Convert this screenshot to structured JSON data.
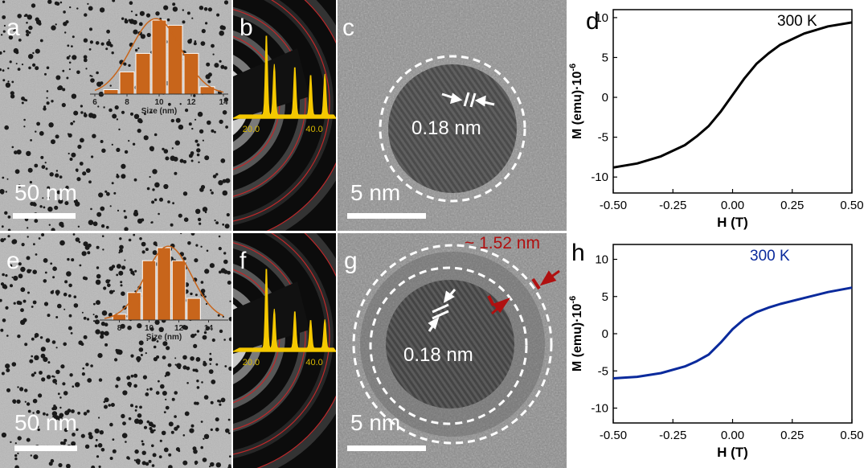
{
  "panels": {
    "a": {
      "letter": "a",
      "scale": "50 nm"
    },
    "b": {
      "letter": "b"
    },
    "c": {
      "letter": "c",
      "scale": "5 nm",
      "lattice": "0.18 nm"
    },
    "d": {
      "letter": "d"
    },
    "e": {
      "letter": "e",
      "scale": "50 nm"
    },
    "f": {
      "letter": "f"
    },
    "g": {
      "letter": "g",
      "scale": "5 nm",
      "lattice": "0.18 nm",
      "shell": "~ 1.52 nm"
    },
    "h": {
      "letter": "h"
    }
  },
  "colors": {
    "hist": "#c8651b",
    "saed_peak": "#f5c800",
    "curve_d": "#000000",
    "curve_h": "#0a2a9c",
    "shell_red": "#b01010"
  },
  "chart_data": [
    {
      "id": "hist-a",
      "type": "bar",
      "categories": [
        "7",
        "8",
        "9",
        "10",
        "11",
        "12",
        "13"
      ],
      "values": [
        0.06,
        0.3,
        0.55,
        1.0,
        0.93,
        0.55,
        0.1
      ],
      "xticks": [
        "6",
        "8",
        "10",
        "12",
        "14"
      ],
      "xlabel": "Size (nm)",
      "xlim": [
        6,
        14
      ]
    },
    {
      "id": "hist-e",
      "type": "bar",
      "categories": [
        "8",
        "9",
        "10",
        "11",
        "12",
        "13"
      ],
      "values": [
        0.08,
        0.38,
        0.82,
        1.0,
        0.82,
        0.3
      ],
      "xticks": [
        "8",
        "10",
        "12",
        "14"
      ],
      "xlabel": "Size (nm)",
      "xlim": [
        7,
        15
      ]
    },
    {
      "id": "saed-b",
      "type": "line",
      "xticks": [
        "20.0",
        "40.0"
      ],
      "peaks": [
        {
          "x": 24.5,
          "h": 1.0
        },
        {
          "x": 27,
          "h": 0.62
        },
        {
          "x": 33.5,
          "h": 0.6
        },
        {
          "x": 38.5,
          "h": 0.5
        },
        {
          "x": 43,
          "h": 0.5
        }
      ]
    },
    {
      "id": "saed-f",
      "type": "line",
      "xticks": [
        "20.0",
        "40.0"
      ],
      "peaks": [
        {
          "x": 24.5,
          "h": 1.0
        },
        {
          "x": 27,
          "h": 0.48
        },
        {
          "x": 33.5,
          "h": 0.46
        },
        {
          "x": 38.5,
          "h": 0.35
        },
        {
          "x": 43,
          "h": 0.35
        }
      ]
    },
    {
      "id": "mh-d",
      "type": "line",
      "annotation": "300 K",
      "xlabel": "H (T)",
      "ylabel": "M (emu)·10",
      "ylabel_exp": "-6",
      "xlim": [
        -0.5,
        0.5
      ],
      "ylim": [
        -12,
        11
      ],
      "xticks": [
        "-0.50",
        "-0.25",
        "0.00",
        "0.25",
        "0.50"
      ],
      "yticks": [
        "-10",
        "-5",
        "0",
        "5",
        "10"
      ],
      "x": [
        -0.5,
        -0.4,
        -0.3,
        -0.2,
        -0.15,
        -0.1,
        -0.05,
        0,
        0.05,
        0.1,
        0.15,
        0.2,
        0.3,
        0.4,
        0.5
      ],
      "y": [
        -8.8,
        -8.3,
        -7.4,
        -6.0,
        -4.9,
        -3.6,
        -1.8,
        0.3,
        2.4,
        4.2,
        5.5,
        6.6,
        8.0,
        8.9,
        9.4
      ]
    },
    {
      "id": "mh-h",
      "type": "line",
      "annotation": "300 K",
      "xlabel": "H (T)",
      "ylabel": "M (emu)·10",
      "ylabel_exp": "-6",
      "xlim": [
        -0.5,
        0.5
      ],
      "ylim": [
        -12,
        12
      ],
      "xticks": [
        "-0.50",
        "-0.25",
        "0.00",
        "0.25",
        "0.50"
      ],
      "yticks": [
        "-10",
        "-5",
        "0",
        "5",
        "10"
      ],
      "x": [
        -0.5,
        -0.4,
        -0.3,
        -0.2,
        -0.15,
        -0.1,
        -0.05,
        0,
        0.05,
        0.1,
        0.15,
        0.2,
        0.3,
        0.4,
        0.5
      ],
      "y": [
        -6.0,
        -5.8,
        -5.3,
        -4.4,
        -3.7,
        -2.8,
        -1.2,
        0.6,
        2.0,
        2.9,
        3.5,
        4.0,
        4.8,
        5.6,
        6.2
      ]
    }
  ]
}
